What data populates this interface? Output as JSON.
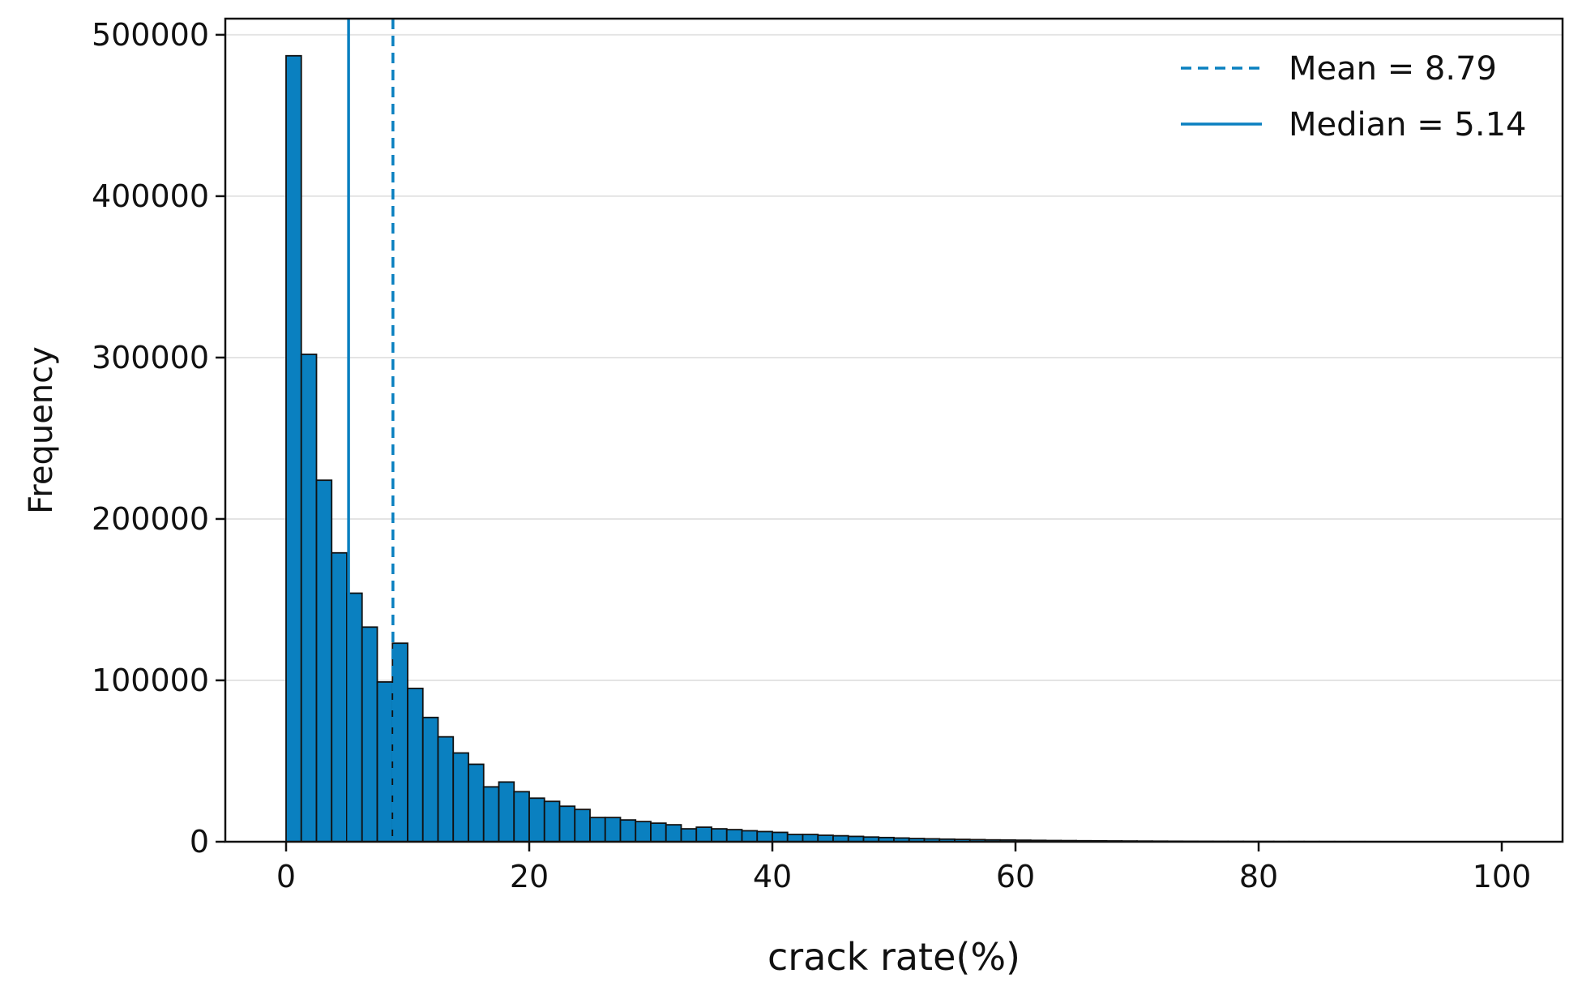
{
  "chart_data": {
    "type": "bar",
    "title": "",
    "xlabel": "crack rate(%)",
    "ylabel": "Frequency",
    "xlim": [
      -5,
      105
    ],
    "ylim": [
      0,
      510000
    ],
    "xticks": [
      0,
      20,
      40,
      60,
      80,
      100
    ],
    "yticks": [
      0,
      100000,
      200000,
      300000,
      400000,
      500000
    ],
    "grid": "horizontal",
    "legend_position": "top-right",
    "colors": {
      "bar_fill": "#0a80c0",
      "bar_edge": "#111111",
      "line": "#0a80c0",
      "grid": "#e4e4e4"
    },
    "bin_width": 1.25,
    "bin_start": 0,
    "values": [
      487000,
      302000,
      224000,
      179000,
      154000,
      133000,
      99000,
      123000,
      95000,
      77000,
      65000,
      55000,
      48000,
      34000,
      37000,
      31000,
      27000,
      25000,
      22000,
      20000,
      15000,
      15000,
      13500,
      12500,
      11500,
      10500,
      8000,
      9000,
      8000,
      7500,
      6800,
      6300,
      5800,
      4500,
      4500,
      4000,
      3700,
      3300,
      2900,
      2600,
      2300,
      2000,
      1800,
      1600,
      1450,
      1300,
      1150,
      1050,
      950,
      850,
      750,
      700,
      620,
      550,
      500,
      450,
      400,
      360,
      320,
      290,
      260,
      230,
      210,
      190,
      170,
      150,
      130,
      115,
      100,
      90,
      80,
      70,
      62,
      55,
      48,
      42,
      36,
      31,
      27,
      23
    ],
    "reference_lines": [
      {
        "label": "Mean = 8.79",
        "x": 8.79,
        "style": "dashed"
      },
      {
        "label": "Median = 5.14",
        "x": 5.14,
        "style": "solid"
      }
    ]
  }
}
